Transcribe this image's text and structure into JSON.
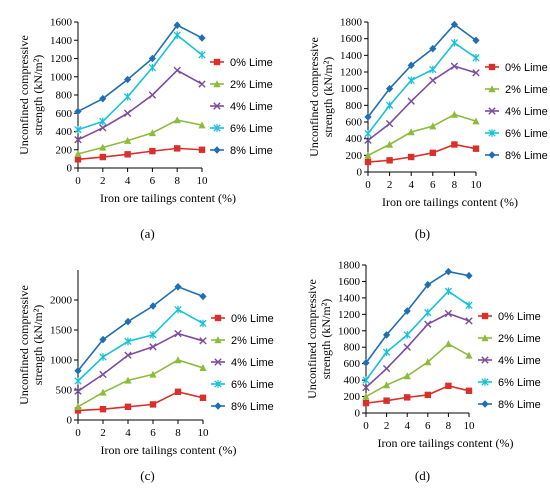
{
  "colors": {
    "0% Lime": "#d9302b",
    "2% Lime": "#8dbb3c",
    "4% Lime": "#7d4c9e",
    "6% Lime": "#17c2d6",
    "8% Lime": "#1e6fb3"
  },
  "chart_data": [
    {
      "type": "line",
      "panel_label": "(a)",
      "xlabel": "Iron ore tailings content (%)",
      "ylabel": "Unconfined compressive strength (kN/m²)",
      "x": [
        0,
        2,
        4,
        6,
        8,
        10
      ],
      "xlim": [
        0,
        10
      ],
      "xticks": [
        0,
        2,
        4,
        6,
        8,
        10
      ],
      "ylim": [
        0,
        1600
      ],
      "yticks": [
        0,
        200,
        400,
        600,
        800,
        1000,
        1200,
        1400,
        1600
      ],
      "grid": false,
      "legend_position": "right",
      "series": [
        {
          "name": "0% Lime",
          "marker": "square",
          "values": [
            95,
            120,
            150,
            185,
            215,
            200
          ]
        },
        {
          "name": "2% Lime",
          "marker": "triangle",
          "values": [
            155,
            225,
            300,
            385,
            525,
            470
          ]
        },
        {
          "name": "4% Lime",
          "marker": "x",
          "values": [
            310,
            440,
            600,
            800,
            1070,
            920
          ]
        },
        {
          "name": "6% Lime",
          "marker": "star",
          "values": [
            420,
            510,
            780,
            1100,
            1455,
            1240
          ]
        },
        {
          "name": "8% Lime",
          "marker": "diamond",
          "values": [
            620,
            760,
            970,
            1200,
            1565,
            1425
          ]
        }
      ]
    },
    {
      "type": "line",
      "panel_label": "(b)",
      "xlabel": "Iron ore tailings content (%)",
      "ylabel": "Unconfined compressive strength (kN/m²)",
      "x": [
        0,
        2,
        4,
        6,
        8,
        10
      ],
      "xlim": [
        0,
        10
      ],
      "xticks": [
        0,
        2,
        4,
        6,
        8,
        10
      ],
      "ylim": [
        0,
        1800
      ],
      "yticks": [
        0,
        200,
        400,
        600,
        800,
        1000,
        1200,
        1400,
        1600,
        1800
      ],
      "grid": false,
      "legend_position": "right",
      "series": [
        {
          "name": "0% Lime",
          "marker": "square",
          "values": [
            120,
            140,
            180,
            230,
            330,
            280
          ]
        },
        {
          "name": "2% Lime",
          "marker": "triangle",
          "values": [
            200,
            330,
            480,
            550,
            690,
            610
          ]
        },
        {
          "name": "4% Lime",
          "marker": "x",
          "values": [
            380,
            580,
            850,
            1100,
            1270,
            1190
          ]
        },
        {
          "name": "6% Lime",
          "marker": "star",
          "values": [
            460,
            800,
            1100,
            1230,
            1550,
            1370
          ]
        },
        {
          "name": "8% Lime",
          "marker": "diamond",
          "values": [
            660,
            1000,
            1280,
            1480,
            1770,
            1580
          ]
        }
      ]
    },
    {
      "type": "line",
      "panel_label": "(c)",
      "xlabel": "Iron ore tailings content (%)",
      "ylabel": "Unconfined compressive strength (kN/m²)",
      "x": [
        0,
        2,
        4,
        6,
        8,
        10
      ],
      "xlim": [
        0,
        10
      ],
      "xticks": [
        0,
        2,
        4,
        6,
        8,
        10
      ],
      "ylim": [
        0,
        2500
      ],
      "yticks": [
        0,
        500,
        1000,
        1500,
        2000
      ],
      "grid": false,
      "legend_position": "right",
      "series": [
        {
          "name": "0% Lime",
          "marker": "square",
          "values": [
            160,
            180,
            220,
            260,
            470,
            370
          ]
        },
        {
          "name": "2% Lime",
          "marker": "triangle",
          "values": [
            220,
            460,
            660,
            760,
            1000,
            870
          ]
        },
        {
          "name": "4% Lime",
          "marker": "x",
          "values": [
            480,
            760,
            1080,
            1220,
            1440,
            1320
          ]
        },
        {
          "name": "6% Lime",
          "marker": "star",
          "values": [
            650,
            1050,
            1310,
            1420,
            1840,
            1610
          ]
        },
        {
          "name": "8% Lime",
          "marker": "diamond",
          "values": [
            820,
            1340,
            1640,
            1900,
            2220,
            2060
          ]
        }
      ]
    },
    {
      "type": "line",
      "panel_label": "(d)",
      "xlabel": "Iron ore tailings content (%)",
      "ylabel": "Unconfined compressive strength (kN/m²)",
      "x": [
        0,
        2,
        4,
        6,
        8,
        10
      ],
      "xlim": [
        0,
        10
      ],
      "xticks": [
        0,
        2,
        4,
        6,
        8,
        10
      ],
      "ylim": [
        0,
        1800
      ],
      "yticks": [
        0,
        200,
        400,
        600,
        800,
        1000,
        1200,
        1400,
        1600,
        1800
      ],
      "grid": false,
      "legend_position": "right",
      "series": [
        {
          "name": "0% Lime",
          "marker": "square",
          "values": [
            120,
            150,
            190,
            220,
            330,
            270
          ]
        },
        {
          "name": "2% Lime",
          "marker": "triangle",
          "values": [
            200,
            340,
            450,
            620,
            840,
            700
          ]
        },
        {
          "name": "4% Lime",
          "marker": "x",
          "values": [
            310,
            540,
            800,
            1080,
            1210,
            1120
          ]
        },
        {
          "name": "6% Lime",
          "marker": "star",
          "values": [
            400,
            740,
            950,
            1220,
            1480,
            1310
          ]
        },
        {
          "name": "8% Lime",
          "marker": "diamond",
          "values": [
            610,
            950,
            1240,
            1560,
            1720,
            1670
          ]
        }
      ]
    }
  ]
}
